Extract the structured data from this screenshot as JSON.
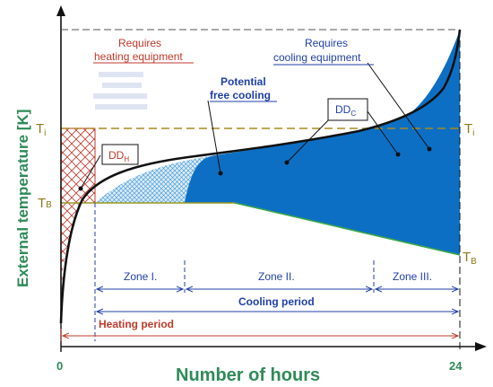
{
  "axes": {
    "y_label": "External temperature [K]",
    "x_label": "Number of hours",
    "x_start": "0",
    "x_end": "24"
  },
  "temperatures": {
    "ti_main": "T",
    "ti_sub": "i",
    "tb_main": "T",
    "tb_sub": "B"
  },
  "annotations": {
    "heating_equipment_line1": "Requires",
    "heating_equipment_line2": "heating equipment",
    "cooling_equipment_line1": "Requires",
    "cooling_equipment_line2": "cooling equipment",
    "free_cooling_line1": "Potential",
    "free_cooling_line2": "free cooling",
    "ddh_main": "DD",
    "ddh_sub": "H",
    "ddc_main": "DD",
    "ddc_sub": "C"
  },
  "zones": {
    "zone1": "Zone I.",
    "zone2": "Zone II.",
    "zone3": "Zone III."
  },
  "periods": {
    "cooling": "Cooling period",
    "heating": "Heating period"
  },
  "colors": {
    "cooling_fill": "#0d6fc4",
    "axis_green": "#2e8b57",
    "ti_line": "#a88a20",
    "heating_red": "#c0392b",
    "period_blue": "#1f3fa8"
  }
}
